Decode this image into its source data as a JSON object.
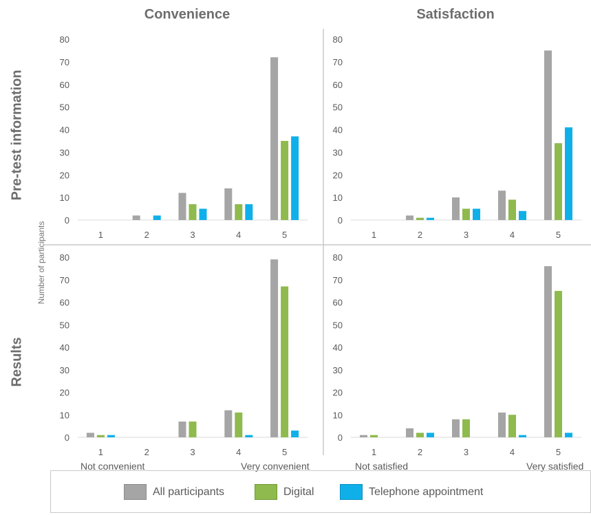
{
  "column_titles": [
    "Convenience",
    "Satisfaction"
  ],
  "row_titles": [
    "Pre-test information",
    "Results"
  ],
  "y_axis_label": "Number of participants",
  "scale_anchors": {
    "convenience_low": "Not convenient",
    "convenience_high": "Very convenient",
    "satisfaction_low": "Not satisfied",
    "satisfaction_high": "Very satisfied"
  },
  "legend": [
    {
      "label": "All participants",
      "color": "#a5a5a5"
    },
    {
      "label": "Digital",
      "color": "#8fba4d"
    },
    {
      "label": "Telephone appointment",
      "color": "#0fb0ea"
    }
  ],
  "chart_data": [
    {
      "type": "bar",
      "panel": "Pre-test information / Convenience",
      "categories": [
        "1",
        "2",
        "3",
        "4",
        "5"
      ],
      "ylim": [
        0,
        80
      ],
      "yticks": [
        0,
        10,
        20,
        30,
        40,
        50,
        60,
        70,
        80
      ],
      "series": [
        {
          "name": "All participants",
          "values": [
            0,
            2,
            12,
            14,
            72
          ]
        },
        {
          "name": "Digital",
          "values": [
            0,
            0,
            7,
            7,
            35
          ]
        },
        {
          "name": "Telephone appointment",
          "values": [
            0,
            2,
            5,
            7,
            37
          ]
        }
      ]
    },
    {
      "type": "bar",
      "panel": "Pre-test information / Satisfaction",
      "categories": [
        "1",
        "2",
        "3",
        "4",
        "5"
      ],
      "ylim": [
        0,
        80
      ],
      "yticks": [
        0,
        10,
        20,
        30,
        40,
        50,
        60,
        70,
        80
      ],
      "series": [
        {
          "name": "All participants",
          "values": [
            0,
            2,
            10,
            13,
            75
          ]
        },
        {
          "name": "Digital",
          "values": [
            0,
            1,
            5,
            9,
            34
          ]
        },
        {
          "name": "Telephone appointment",
          "values": [
            0,
            1,
            5,
            4,
            41
          ]
        }
      ]
    },
    {
      "type": "bar",
      "panel": "Results / Convenience",
      "categories": [
        "1",
        "2",
        "3",
        "4",
        "5"
      ],
      "ylim": [
        0,
        80
      ],
      "yticks": [
        0,
        10,
        20,
        30,
        40,
        50,
        60,
        70,
        80
      ],
      "series": [
        {
          "name": "All participants",
          "values": [
            2,
            0,
            7,
            12,
            79
          ]
        },
        {
          "name": "Digital",
          "values": [
            1,
            0,
            7,
            11,
            67
          ]
        },
        {
          "name": "Telephone appointment",
          "values": [
            1,
            0,
            0,
            1,
            3
          ]
        }
      ]
    },
    {
      "type": "bar",
      "panel": "Results / Satisfaction",
      "categories": [
        "1",
        "2",
        "3",
        "4",
        "5"
      ],
      "ylim": [
        0,
        80
      ],
      "yticks": [
        0,
        10,
        20,
        30,
        40,
        50,
        60,
        70,
        80
      ],
      "series": [
        {
          "name": "All participants",
          "values": [
            1,
            4,
            8,
            11,
            76
          ]
        },
        {
          "name": "Digital",
          "values": [
            1,
            2,
            8,
            10,
            65
          ]
        },
        {
          "name": "Telephone appointment",
          "values": [
            0,
            2,
            0,
            1,
            2
          ]
        }
      ]
    }
  ]
}
